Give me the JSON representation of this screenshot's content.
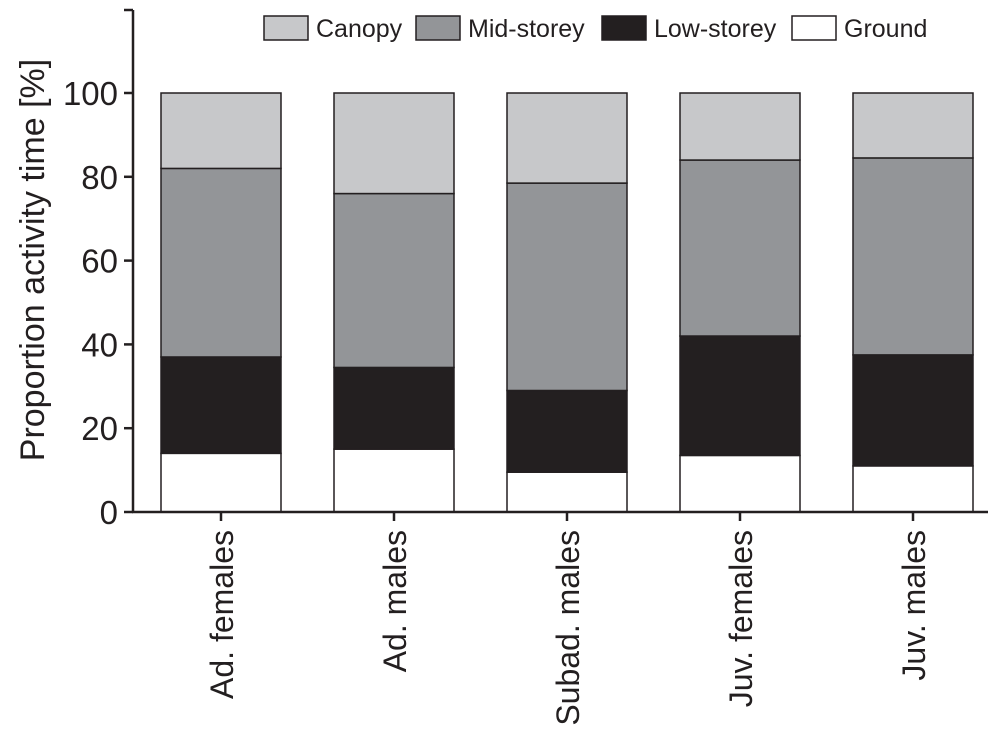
{
  "chart_data": {
    "type": "bar",
    "stacked": true,
    "ylabel": "Proportion activity time [%]",
    "xlabel": "",
    "ylim": [
      0,
      120
    ],
    "yticks": [
      0,
      20,
      40,
      60,
      80,
      100
    ],
    "grid": false,
    "legend_position": "top",
    "categories": [
      "Ad. females",
      "Ad. males",
      "Subad. males",
      "Juv. females",
      "Juv. males"
    ],
    "series": [
      {
        "name": "Ground",
        "color": "#ffffff",
        "values": [
          14,
          15,
          9.5,
          13.5,
          11
        ]
      },
      {
        "name": "Low-storey",
        "color": "#231f20",
        "values": [
          23,
          19.5,
          19.5,
          28.5,
          26.5
        ]
      },
      {
        "name": "Mid-storey",
        "color": "#939598",
        "values": [
          45,
          41.5,
          49.5,
          42,
          47
        ]
      },
      {
        "name": "Canopy",
        "color": "#c7c8ca",
        "values": [
          18,
          24,
          21.5,
          16,
          15.5
        ]
      }
    ],
    "legend_order": [
      "Canopy",
      "Mid-storey",
      "Low-storey",
      "Ground"
    ]
  }
}
